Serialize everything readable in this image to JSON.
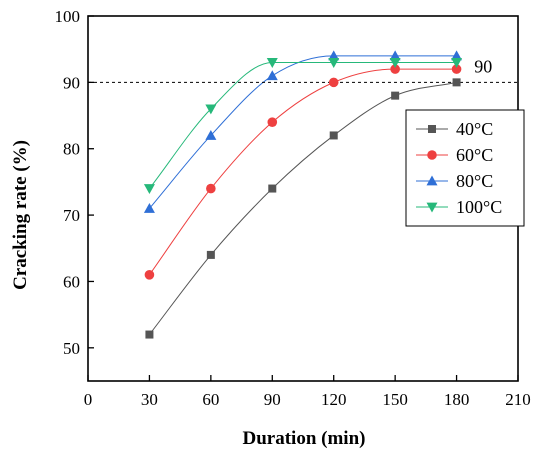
{
  "chart_data": {
    "type": "line",
    "xlabel": "Duration (min)",
    "ylabel": "Cracking rate (%)",
    "xlim": [
      0,
      210
    ],
    "ylim": [
      45,
      100
    ],
    "xticks": [
      0,
      30,
      60,
      90,
      120,
      150,
      180,
      210
    ],
    "yticks": [
      50,
      60,
      70,
      80,
      90,
      100
    ],
    "x": [
      30,
      60,
      90,
      120,
      150,
      180
    ],
    "reference_line": {
      "y": 90,
      "label": "90"
    },
    "legend_position": "right",
    "series": [
      {
        "name": "40°C",
        "marker": "square",
        "color": "#555555",
        "values": [
          52,
          64,
          74,
          82,
          88,
          90
        ]
      },
      {
        "name": "60°C",
        "marker": "circle",
        "color": "#ee4040",
        "values": [
          61,
          74,
          84,
          90,
          92,
          92
        ]
      },
      {
        "name": "80°C",
        "marker": "triangle-up",
        "color": "#2f6fd6",
        "values": [
          71,
          82,
          91,
          94,
          94,
          94
        ]
      },
      {
        "name": "100°C",
        "marker": "triangle-down",
        "color": "#26b87a",
        "values": [
          74,
          86,
          93,
          93,
          93,
          93
        ]
      }
    ]
  }
}
